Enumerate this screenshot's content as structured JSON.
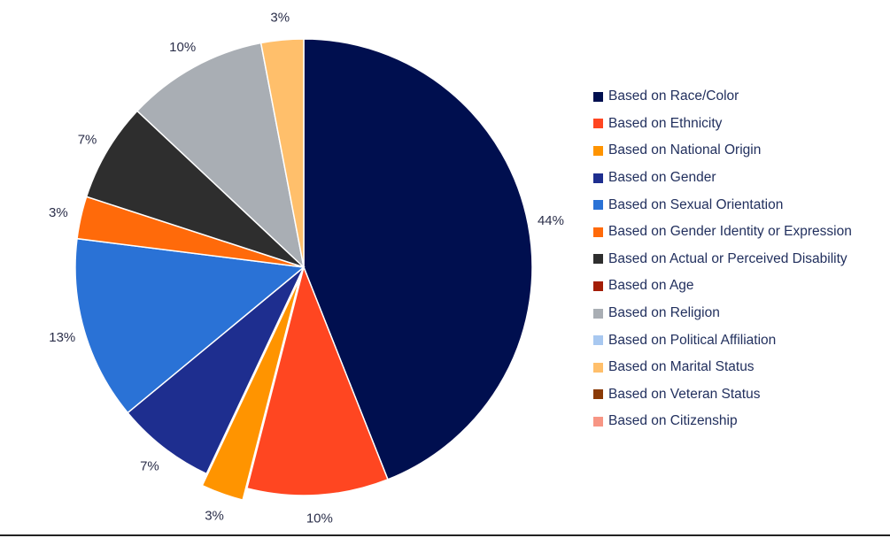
{
  "chart_data": {
    "type": "pie",
    "title": "",
    "legend_position": "right",
    "slices": [
      {
        "label": "Based on Race/Color",
        "value": 44,
        "display": "44%",
        "color": "#000f4f",
        "exploded": false
      },
      {
        "label": "Based on Ethnicity",
        "value": 10,
        "display": "10%",
        "color": "#ff4621",
        "exploded": false
      },
      {
        "label": "Based on National Origin",
        "value": 3,
        "display": "3%",
        "color": "#ff9400",
        "exploded": true
      },
      {
        "label": "Based on Gender",
        "value": 7,
        "display": "7%",
        "color": "#1e2e8f",
        "exploded": false
      },
      {
        "label": "Based on Sexual Orientation",
        "value": 13,
        "display": "13%",
        "color": "#2a72d6",
        "exploded": false
      },
      {
        "label": "Based on Gender Identity or Expression",
        "value": 3,
        "display": "3%",
        "color": "#ff6a0a",
        "exploded": false
      },
      {
        "label": "Based on Actual or Perceived Disability",
        "value": 7,
        "display": "7%",
        "color": "#2e2e2e",
        "exploded": false
      },
      {
        "label": "Based on Age",
        "value": 0,
        "display": "",
        "color": "#a31d06",
        "exploded": false
      },
      {
        "label": "Based on Religion",
        "value": 10,
        "display": "10%",
        "color": "#a9aeb4",
        "exploded": false
      },
      {
        "label": "Based on Political Affiliation",
        "value": 0,
        "display": "",
        "color": "#a8c8f0",
        "exploded": false
      },
      {
        "label": "Based on Marital Status",
        "value": 3,
        "display": "3%",
        "color": "#ffbf6b",
        "exploded": false
      },
      {
        "label": "Based on Veteran Status",
        "value": 0,
        "display": "",
        "color": "#8a3a06",
        "exploded": false
      },
      {
        "label": "Based on Citizenship",
        "value": 0,
        "display": "",
        "color": "#f79584",
        "exploded": false
      }
    ]
  }
}
